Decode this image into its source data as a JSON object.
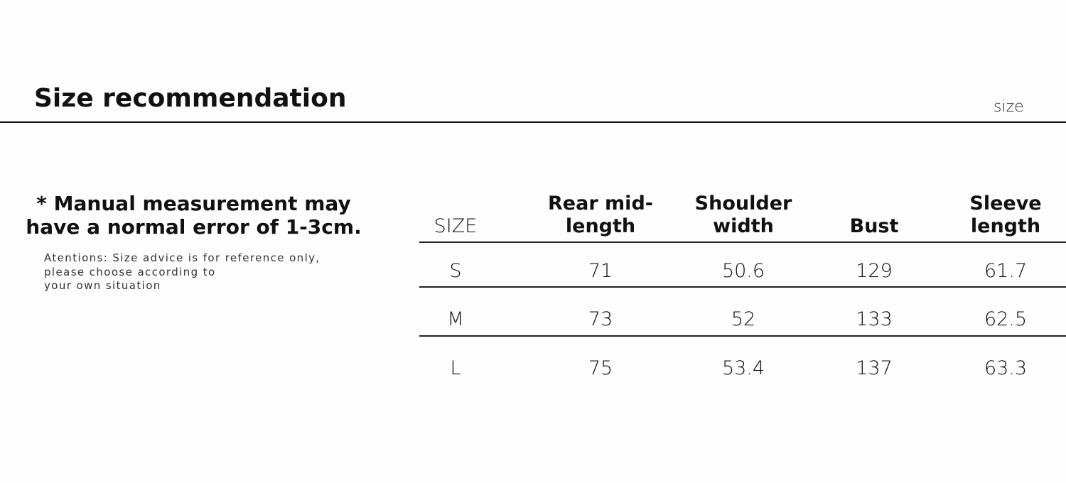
{
  "header": {
    "title": "Size recommendation",
    "label": "size"
  },
  "note": {
    "warning": "* Manual measurement may have a normal error of 1-3cm.",
    "advice": [
      "Atentions: Size advice is for reference only,",
      "please choose according to",
      "your own situation"
    ]
  },
  "table": {
    "columns": [
      "SIZE",
      "Rear mid-length",
      "Shoulder width",
      "Bust",
      "Sleeve length"
    ],
    "rows": [
      [
        "S",
        71,
        50.6,
        129,
        61.7
      ],
      [
        "M",
        73,
        52,
        133,
        62.5
      ],
      [
        "L",
        75,
        53.4,
        137,
        63.3
      ]
    ]
  }
}
